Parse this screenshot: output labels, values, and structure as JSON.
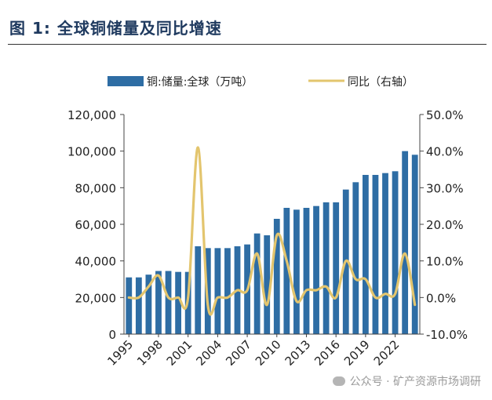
{
  "header": {
    "title": "图 1: 全球铜储量及同比增速"
  },
  "watermark": {
    "text": "公众号 · 矿产资源市场调研",
    "icon": "wechat-icon"
  },
  "chart_data": {
    "type": "bar",
    "legend": {
      "placement": "top-center",
      "bar_label": "铜:储量:全球（万吨）",
      "line_label": "同比（右轴）"
    },
    "years": [
      1995,
      1996,
      1997,
      1998,
      1999,
      2000,
      2001,
      2002,
      2003,
      2004,
      2005,
      2006,
      2007,
      2008,
      2009,
      2010,
      2011,
      2012,
      2013,
      2014,
      2015,
      2016,
      2017,
      2018,
      2019,
      2020,
      2021,
      2022,
      2023,
      2024
    ],
    "x_tick_labels": [
      "1995",
      "1998",
      "2001",
      "2004",
      "2007",
      "2010",
      "2013",
      "2016",
      "2019",
      "2022"
    ],
    "series": [
      {
        "name": "铜:储量:全球（万吨）",
        "type": "bar",
        "axis": "left",
        "color": "#2e6da4",
        "values": [
          31000,
          31000,
          32500,
          34500,
          34500,
          34000,
          34000,
          48000,
          47000,
          47000,
          47000,
          48000,
          49000,
          55000,
          54000,
          63000,
          69000,
          68000,
          69000,
          70000,
          72000,
          72000,
          79000,
          83000,
          87000,
          87000,
          88000,
          89000,
          100000,
          98000
        ]
      },
      {
        "name": "同比（右轴）",
        "type": "line",
        "axis": "right",
        "color": "#e3c56e",
        "values": [
          0,
          0,
          3,
          6,
          0,
          0,
          0,
          41,
          -2,
          0,
          0,
          2,
          2,
          12,
          -2,
          17,
          10,
          -1,
          2,
          2,
          3,
          0,
          10,
          5,
          5,
          0,
          1,
          1,
          12,
          -2
        ]
      }
    ],
    "y_left": {
      "min": 0,
      "max": 120000,
      "ticks": [
        "0",
        "20,000",
        "40,000",
        "60,000",
        "80,000",
        "100,000",
        "120,000"
      ]
    },
    "y_right": {
      "min": -10,
      "max": 50,
      "ticks": [
        "-10.0%",
        "0.0%",
        "10.0%",
        "20.0%",
        "30.0%",
        "40.0%",
        "50.0%"
      ]
    },
    "grid": false
  }
}
